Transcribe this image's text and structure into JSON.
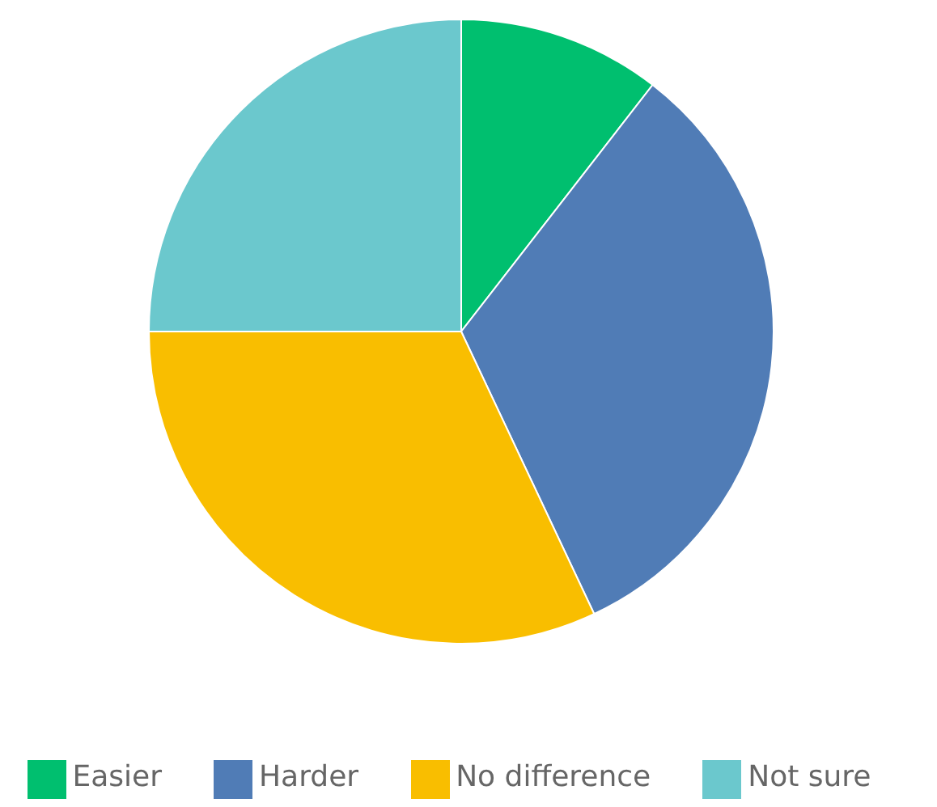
{
  "chart_data": {
    "type": "pie",
    "categories": [
      "Easier",
      "Harder",
      "No difference",
      "Not sure"
    ],
    "values": [
      10.5,
      32.5,
      32,
      25
    ],
    "colors": [
      "#00bf6f",
      "#507cb6",
      "#f9be00",
      "#6bc8cd"
    ],
    "legend": "bottom"
  }
}
